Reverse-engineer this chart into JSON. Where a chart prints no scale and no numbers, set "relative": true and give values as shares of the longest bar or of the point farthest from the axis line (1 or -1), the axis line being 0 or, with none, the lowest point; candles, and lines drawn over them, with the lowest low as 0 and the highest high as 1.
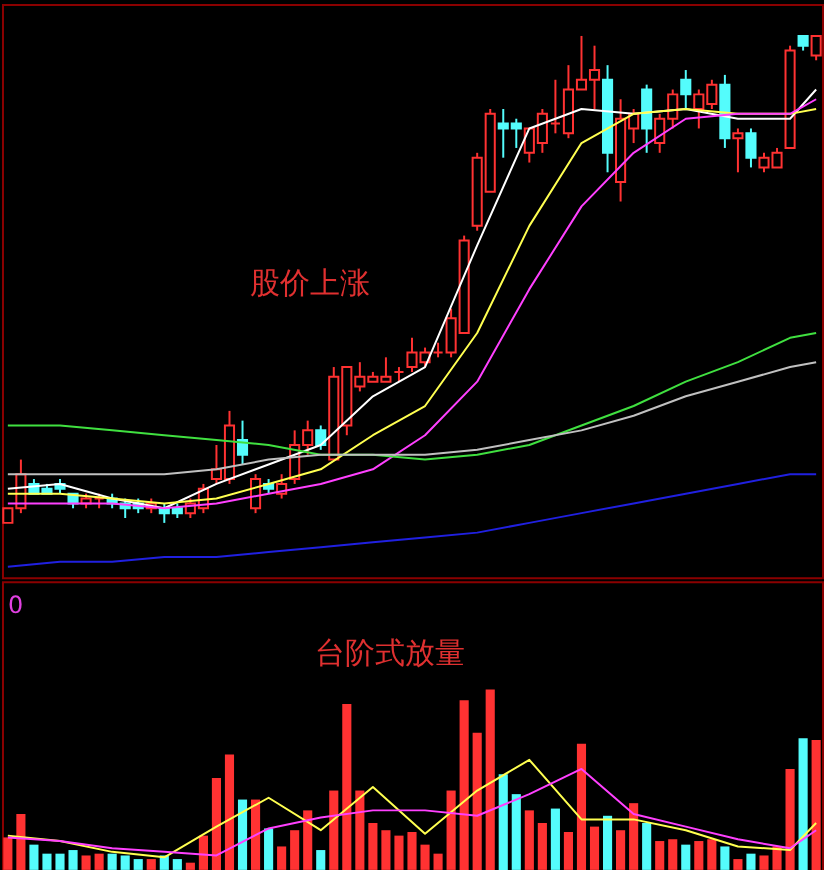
{
  "chart_data": [
    {
      "type": "candlestick",
      "relative": true,
      "categories": [
        null,
        null,
        null,
        null,
        null,
        null,
        null,
        null,
        null,
        null,
        null,
        null,
        null,
        null,
        null,
        null,
        null,
        null,
        null,
        null,
        null,
        null,
        null,
        null,
        null,
        null,
        null,
        null,
        null,
        null,
        null,
        null,
        null,
        null,
        null,
        null,
        null,
        null,
        null,
        null,
        null,
        null,
        null,
        null,
        null,
        null,
        null,
        null,
        null,
        null,
        null,
        null,
        null,
        null,
        null,
        null,
        null,
        null,
        null,
        null,
        null,
        null,
        null
      ],
      "ohlc": [
        [
          0.0,
          0.03,
          0.0,
          0.03
        ],
        [
          0.03,
          0.13,
          0.02,
          0.1
        ],
        [
          0.08,
          0.09,
          0.06,
          0.06
        ],
        [
          0.07,
          0.08,
          0.06,
          0.06
        ],
        [
          0.08,
          0.09,
          0.06,
          0.07
        ],
        [
          0.06,
          0.06,
          0.03,
          0.04
        ],
        [
          0.04,
          0.06,
          0.03,
          0.05
        ],
        [
          0.05,
          0.06,
          0.03,
          0.05
        ],
        [
          0.05,
          0.06,
          0.03,
          0.04
        ],
        [
          0.04,
          0.05,
          0.01,
          0.03
        ],
        [
          0.04,
          0.05,
          0.02,
          0.03
        ],
        [
          0.03,
          0.05,
          0.02,
          0.04
        ],
        [
          0.03,
          0.04,
          0.0,
          0.02
        ],
        [
          0.03,
          0.04,
          0.01,
          0.02
        ],
        [
          0.02,
          0.05,
          0.01,
          0.04
        ],
        [
          0.03,
          0.08,
          0.02,
          0.07
        ],
        [
          0.09,
          0.16,
          0.08,
          0.11
        ],
        [
          0.09,
          0.23,
          0.08,
          0.2
        ],
        [
          0.17,
          0.21,
          0.12,
          0.14
        ],
        [
          0.03,
          0.1,
          0.02,
          0.09
        ],
        [
          0.08,
          0.09,
          0.06,
          0.07
        ],
        [
          0.06,
          0.1,
          0.05,
          0.08
        ],
        [
          0.09,
          0.19,
          0.08,
          0.16
        ],
        [
          0.16,
          0.21,
          0.14,
          0.19
        ],
        [
          0.19,
          0.2,
          0.15,
          0.16
        ],
        [
          0.13,
          0.32,
          0.13,
          0.3
        ],
        [
          0.2,
          0.32,
          0.18,
          0.32
        ],
        [
          0.28,
          0.33,
          0.27,
          0.3
        ],
        [
          0.29,
          0.31,
          0.29,
          0.3
        ],
        [
          0.29,
          0.34,
          0.29,
          0.3
        ],
        [
          0.31,
          0.32,
          0.29,
          0.31
        ],
        [
          0.32,
          0.38,
          0.31,
          0.35
        ],
        [
          0.33,
          0.36,
          0.32,
          0.35
        ],
        [
          0.35,
          0.37,
          0.34,
          0.35
        ],
        [
          0.35,
          0.44,
          0.34,
          0.42
        ],
        [
          0.39,
          0.59,
          0.39,
          0.58
        ],
        [
          0.61,
          0.76,
          0.6,
          0.75
        ],
        [
          0.68,
          0.85,
          0.68,
          0.84
        ],
        [
          0.82,
          0.85,
          0.75,
          0.81
        ],
        [
          0.82,
          0.83,
          0.77,
          0.81
        ],
        [
          0.76,
          0.81,
          0.74,
          0.81
        ],
        [
          0.78,
          0.85,
          0.76,
          0.84
        ],
        [
          0.82,
          0.91,
          0.8,
          0.82
        ],
        [
          0.8,
          0.94,
          0.79,
          0.89
        ],
        [
          0.89,
          1.0,
          0.89,
          0.91
        ],
        [
          0.91,
          0.98,
          0.85,
          0.93
        ],
        [
          0.91,
          0.94,
          0.72,
          0.76
        ],
        [
          0.7,
          0.87,
          0.66,
          0.83
        ],
        [
          0.81,
          0.85,
          0.78,
          0.84
        ],
        [
          0.89,
          0.9,
          0.76,
          0.81
        ],
        [
          0.78,
          0.84,
          0.76,
          0.83
        ],
        [
          0.83,
          0.89,
          0.81,
          0.88
        ],
        [
          0.91,
          0.93,
          0.85,
          0.88
        ],
        [
          0.85,
          0.89,
          0.81,
          0.88
        ],
        [
          0.86,
          0.91,
          0.85,
          0.9
        ],
        [
          0.9,
          0.92,
          0.77,
          0.79
        ],
        [
          0.79,
          0.81,
          0.72,
          0.8
        ],
        [
          0.8,
          0.81,
          0.73,
          0.75
        ],
        [
          0.73,
          0.76,
          0.72,
          0.75
        ],
        [
          0.73,
          0.77,
          0.73,
          0.76
        ],
        [
          0.77,
          0.98,
          0.77,
          0.97
        ],
        [
          1.0,
          1.0,
          0.97,
          0.98
        ],
        [
          0.96,
          1.0,
          0.95,
          1.0
        ]
      ],
      "series": [
        {
          "type": "line",
          "color": "#ffffff",
          "values": [
            0.07,
            null,
            null,
            null,
            0.08,
            null,
            null,
            null,
            0.05,
            null,
            null,
            null,
            0.03,
            null,
            null,
            null,
            0.08,
            null,
            null,
            null,
            0.12,
            null,
            null,
            null,
            0.16,
            null,
            null,
            null,
            0.26,
            null,
            null,
            null,
            0.32,
            null,
            null,
            null,
            0.57,
            null,
            null,
            null,
            0.81,
            null,
            null,
            null,
            0.85,
            null,
            null,
            null,
            0.84,
            null,
            null,
            null,
            0.85,
            null,
            null,
            null,
            0.83,
            null,
            null,
            null,
            0.83,
            null,
            0.89
          ]
        },
        {
          "type": "line",
          "color": "#ffff50",
          "values": [
            0.06,
            null,
            null,
            null,
            0.06,
            null,
            null,
            null,
            0.05,
            null,
            null,
            null,
            0.04,
            null,
            null,
            null,
            0.05,
            null,
            null,
            null,
            0.08,
            null,
            null,
            null,
            0.11,
            null,
            null,
            null,
            0.18,
            null,
            null,
            null,
            0.24,
            null,
            null,
            null,
            0.39,
            null,
            null,
            null,
            0.61,
            null,
            null,
            null,
            0.78,
            null,
            null,
            null,
            0.84,
            null,
            null,
            null,
            0.85,
            null,
            null,
            null,
            0.84,
            null,
            null,
            null,
            0.84,
            null,
            0.85
          ]
        },
        {
          "type": "line",
          "color": "#ff40ff",
          "values": [
            0.04,
            null,
            null,
            null,
            0.04,
            null,
            null,
            null,
            0.04,
            null,
            null,
            null,
            0.03,
            null,
            null,
            null,
            0.04,
            null,
            null,
            null,
            0.06,
            null,
            null,
            null,
            0.08,
            null,
            null,
            null,
            0.11,
            null,
            null,
            null,
            0.18,
            null,
            null,
            null,
            0.29,
            null,
            null,
            null,
            0.48,
            null,
            null,
            null,
            0.65,
            null,
            null,
            null,
            0.76,
            null,
            null,
            null,
            0.83,
            null,
            null,
            null,
            0.84,
            null,
            null,
            null,
            0.84,
            null,
            0.87
          ]
        },
        {
          "type": "line",
          "color": "#40e040",
          "values": [
            0.2,
            null,
            null,
            null,
            0.2,
            null,
            null,
            null,
            0.19,
            null,
            null,
            null,
            0.18,
            null,
            null,
            null,
            0.17,
            null,
            null,
            null,
            0.16,
            null,
            null,
            null,
            0.14,
            null,
            null,
            null,
            0.14,
            null,
            null,
            null,
            0.13,
            null,
            null,
            null,
            0.14,
            null,
            null,
            null,
            0.16,
            null,
            null,
            null,
            0.2,
            null,
            null,
            null,
            0.24,
            null,
            null,
            null,
            0.29,
            null,
            null,
            null,
            0.33,
            null,
            null,
            null,
            0.38,
            null,
            0.39
          ]
        },
        {
          "type": "line",
          "color": "#c0c0c0",
          "values": [
            0.1,
            null,
            null,
            null,
            0.1,
            null,
            null,
            null,
            0.1,
            null,
            null,
            null,
            0.1,
            null,
            null,
            null,
            0.11,
            null,
            null,
            null,
            0.13,
            null,
            null,
            null,
            0.14,
            null,
            null,
            null,
            0.14,
            null,
            null,
            null,
            0.14,
            null,
            null,
            null,
            0.15,
            null,
            null,
            null,
            0.17,
            null,
            null,
            null,
            0.19,
            null,
            null,
            null,
            0.22,
            null,
            null,
            null,
            0.26,
            null,
            null,
            null,
            0.29,
            null,
            null,
            null,
            0.32,
            null,
            0.33
          ]
        },
        {
          "type": "line",
          "color": "#2020e0",
          "values": [
            -0.09,
            null,
            null,
            null,
            -0.08,
            null,
            null,
            null,
            -0.08,
            null,
            null,
            null,
            -0.07,
            null,
            null,
            null,
            -0.07,
            null,
            null,
            null,
            -0.06,
            null,
            null,
            null,
            -0.05,
            null,
            null,
            null,
            -0.04,
            null,
            null,
            null,
            -0.03,
            null,
            null,
            null,
            -0.02,
            null,
            null,
            null,
            0.0,
            null,
            null,
            null,
            0.02,
            null,
            null,
            null,
            0.04,
            null,
            null,
            null,
            0.06,
            null,
            null,
            null,
            0.08,
            null,
            null,
            null,
            0.1,
            null,
            0.1
          ]
        }
      ],
      "annotations": [
        "股价上涨"
      ]
    },
    {
      "type": "bar",
      "relative": true,
      "categories": [
        null,
        null,
        null,
        null,
        null,
        null,
        null,
        null,
        null,
        null,
        null,
        null,
        null,
        null,
        null,
        null,
        null,
        null,
        null,
        null,
        null,
        null,
        null,
        null,
        null,
        null,
        null,
        null,
        null,
        null,
        null,
        null,
        null,
        null,
        null,
        null,
        null,
        null,
        null,
        null,
        null,
        null,
        null,
        null,
        null,
        null,
        null,
        null,
        null,
        null,
        null,
        null,
        null,
        null,
        null,
        null,
        null,
        null,
        null,
        null,
        null,
        null,
        null
      ],
      "values": [
        0.18,
        0.31,
        0.14,
        0.09,
        0.09,
        0.11,
        0.08,
        0.09,
        0.09,
        0.08,
        0.06,
        0.06,
        0.08,
        0.06,
        0.04,
        0.19,
        0.51,
        0.64,
        0.39,
        0.39,
        0.23,
        0.13,
        0.22,
        0.33,
        0.11,
        0.44,
        0.92,
        0.44,
        0.26,
        0.22,
        0.19,
        0.21,
        0.14,
        0.09,
        0.44,
        0.94,
        0.76,
        1.0,
        0.53,
        0.42,
        0.33,
        0.26,
        0.34,
        0.21,
        0.7,
        0.24,
        0.3,
        0.22,
        0.37,
        0.26,
        0.16,
        0.17,
        0.14,
        0.16,
        0.17,
        0.13,
        0.06,
        0.09,
        0.08,
        0.13,
        0.56,
        0.73,
        0.72
      ],
      "colors": [
        "#ff3232",
        "#ff3232",
        "#54fcfc",
        "#54fcfc",
        "#54fcfc",
        "#54fcfc",
        "#ff3232",
        "#ff3232",
        "#54fcfc",
        "#54fcfc",
        "#54fcfc",
        "#ff3232",
        "#54fcfc",
        "#54fcfc",
        "#ff3232",
        "#ff3232",
        "#ff3232",
        "#ff3232",
        "#54fcfc",
        "#ff3232",
        "#54fcfc",
        "#ff3232",
        "#ff3232",
        "#ff3232",
        "#54fcfc",
        "#ff3232",
        "#ff3232",
        "#ff3232",
        "#ff3232",
        "#ff3232",
        "#ff3232",
        "#ff3232",
        "#ff3232",
        "#ff3232",
        "#ff3232",
        "#ff3232",
        "#ff3232",
        "#ff3232",
        "#54fcfc",
        "#54fcfc",
        "#ff3232",
        "#ff3232",
        "#54fcfc",
        "#ff3232",
        "#ff3232",
        "#ff3232",
        "#54fcfc",
        "#ff3232",
        "#ff3232",
        "#54fcfc",
        "#ff3232",
        "#ff3232",
        "#54fcfc",
        "#ff3232",
        "#ff3232",
        "#54fcfc",
        "#ff3232",
        "#54fcfc",
        "#ff3232",
        "#ff3232",
        "#ff3232",
        "#54fcfc",
        "#ff3232"
      ],
      "series": [
        {
          "type": "line",
          "color": "#ffff50",
          "values": [
            0.19,
            null,
            null,
            null,
            0.16,
            null,
            null,
            null,
            0.1,
            null,
            null,
            null,
            0.07,
            null,
            null,
            null,
            0.24,
            null,
            null,
            null,
            0.4,
            null,
            null,
            null,
            0.22,
            null,
            null,
            null,
            0.46,
            null,
            null,
            null,
            0.2,
            null,
            null,
            null,
            0.44,
            null,
            null,
            null,
            0.61,
            null,
            null,
            null,
            0.28,
            null,
            null,
            null,
            0.28,
            null,
            null,
            null,
            0.22,
            null,
            null,
            null,
            0.13,
            null,
            null,
            null,
            0.11,
            null,
            0.26
          ]
        },
        {
          "type": "line",
          "color": "#ff40ff",
          "values": [
            0.18,
            null,
            null,
            null,
            0.16,
            null,
            null,
            null,
            0.12,
            null,
            null,
            null,
            0.1,
            null,
            null,
            null,
            0.08,
            null,
            null,
            null,
            0.23,
            null,
            null,
            null,
            0.29,
            null,
            null,
            null,
            0.33,
            null,
            null,
            null,
            0.33,
            null,
            null,
            null,
            0.3,
            null,
            null,
            null,
            0.42,
            null,
            null,
            null,
            0.56,
            null,
            null,
            null,
            0.31,
            null,
            null,
            null,
            0.24,
            null,
            null,
            null,
            0.17,
            null,
            null,
            null,
            0.12,
            null,
            0.22
          ]
        }
      ],
      "annotations": [
        "0",
        "台阶式放量"
      ]
    }
  ]
}
